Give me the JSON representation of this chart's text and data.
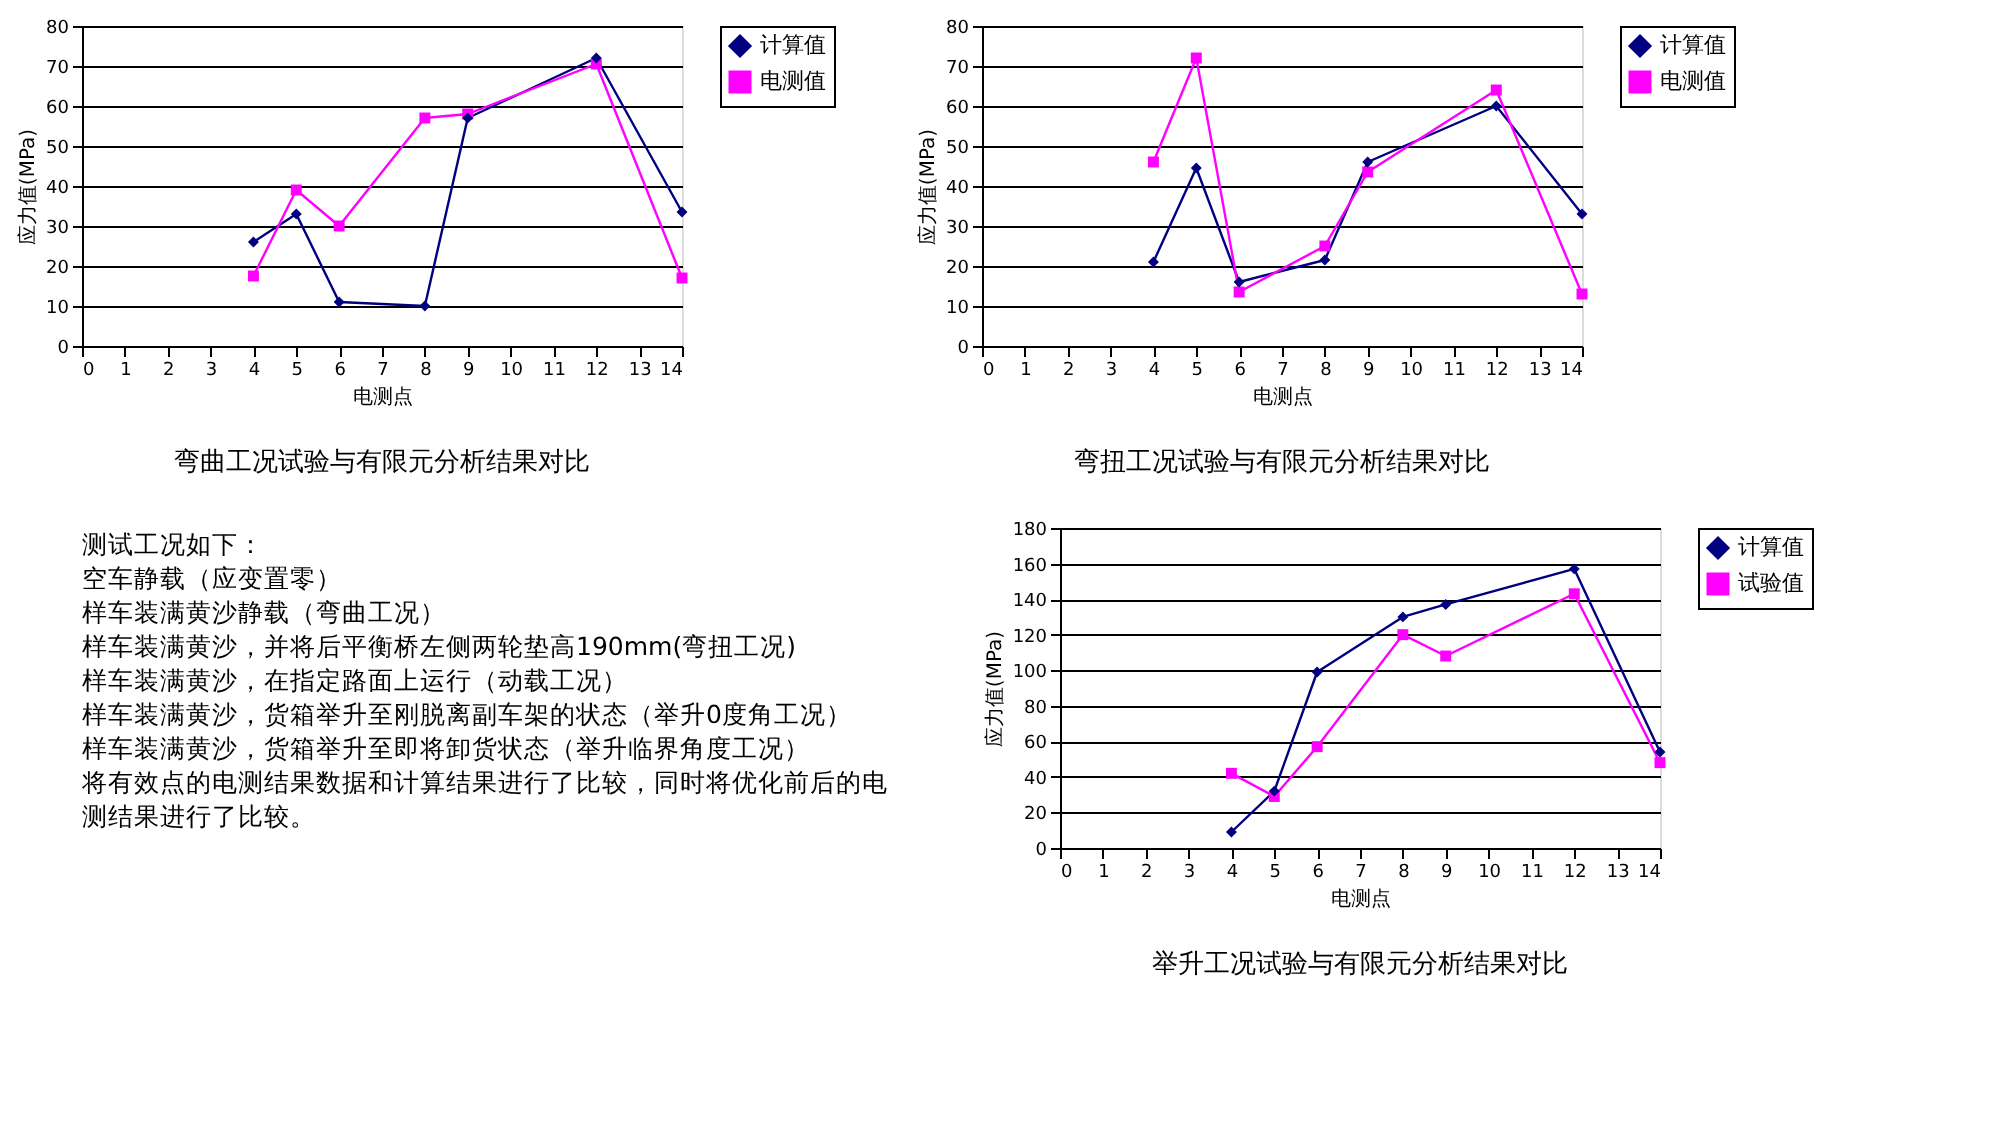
{
  "chart_data": [
    {
      "type": "line",
      "title": "弯曲工况试验与有限元分析结果对比",
      "xlabel": "电测点",
      "ylabel": "应力值(MPa)",
      "x": [
        4,
        5,
        6,
        8,
        9,
        12,
        14
      ],
      "xlim": [
        0,
        14
      ],
      "xticks": [
        0,
        1,
        2,
        3,
        4,
        5,
        6,
        7,
        8,
        9,
        10,
        11,
        12,
        13,
        14
      ],
      "ylim": [
        0,
        80
      ],
      "yticks": [
        0,
        10,
        20,
        30,
        40,
        50,
        60,
        70,
        80
      ],
      "grid": "y",
      "legend": "right",
      "series": [
        {
          "name": "计算值",
          "color": "#000080",
          "marker": "diamond",
          "values": [
            26,
            33,
            11,
            10,
            57,
            72,
            33.5
          ]
        },
        {
          "name": "电测值",
          "color": "#ff00ff",
          "marker": "square",
          "values": [
            17.5,
            39,
            30,
            57,
            58,
            70.5,
            17
          ]
        }
      ]
    },
    {
      "type": "line",
      "title": "弯扭工况试验与有限元分析结果对比",
      "xlabel": "电测点",
      "ylabel": "应力值(MPa)",
      "x": [
        4,
        5,
        6,
        8,
        9,
        12,
        14
      ],
      "xlim": [
        0,
        14
      ],
      "xticks": [
        0,
        1,
        2,
        3,
        4,
        5,
        6,
        7,
        8,
        9,
        10,
        11,
        12,
        13,
        14
      ],
      "ylim": [
        0,
        80
      ],
      "yticks": [
        0,
        10,
        20,
        30,
        40,
        50,
        60,
        70,
        80
      ],
      "grid": "y",
      "legend": "right",
      "series": [
        {
          "name": "计算值",
          "color": "#000080",
          "marker": "diamond",
          "values": [
            21,
            44.5,
            16,
            21.5,
            46,
            60,
            33
          ]
        },
        {
          "name": "电测值",
          "color": "#ff00ff",
          "marker": "square",
          "values": [
            46,
            72,
            13.5,
            25,
            43.5,
            64,
            13
          ]
        }
      ]
    },
    {
      "type": "other",
      "annotations": [
        "测试工况如下：",
        "空车静载（应变置零）",
        "样车装满黄沙静载（弯曲工况）",
        "样车装满黄沙，并将后平衡桥左侧两轮垫高190mm(弯扭工况)",
        "样车装满黄沙，在指定路面上运行（动载工况）",
        "样车装满黄沙，货箱举升至刚脱离副车架的状态（举升0度角工况）",
        "样车装满黄沙，货箱举升至即将卸货状态（举升临界角度工况）",
        "将有效点的电测结果数据和计算结果进行了比较，同时将优化前后的电",
        "测结果进行了比较。"
      ]
    },
    {
      "type": "line",
      "title": "举升工况试验与有限元分析结果对比",
      "xlabel": "电测点",
      "ylabel": "应力值(MPa)",
      "x": [
        4,
        5,
        6,
        8,
        9,
        12,
        14
      ],
      "xlim": [
        0,
        14
      ],
      "xticks": [
        0,
        1,
        2,
        3,
        4,
        5,
        6,
        7,
        8,
        9,
        10,
        11,
        12,
        13,
        14
      ],
      "ylim": [
        0,
        180
      ],
      "yticks": [
        0,
        20,
        40,
        60,
        80,
        100,
        120,
        140,
        160,
        180
      ],
      "grid": "y",
      "legend": "right",
      "series": [
        {
          "name": "计算值",
          "color": "#000080",
          "marker": "diamond",
          "values": [
            9,
            32,
            99,
            130,
            137,
            157,
            54
          ]
        },
        {
          "name": "试验值",
          "color": "#ff00ff",
          "marker": "square",
          "values": [
            42,
            29,
            57,
            120,
            108,
            143,
            48
          ]
        }
      ]
    }
  ]
}
